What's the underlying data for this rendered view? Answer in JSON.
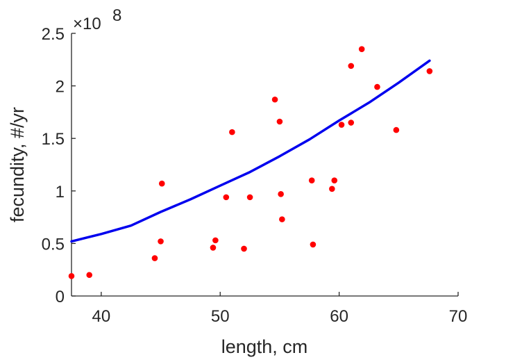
{
  "chart_data": {
    "type": "scatter",
    "title": "",
    "xlabel": "length, cm",
    "ylabel": "fecundity, #/yr",
    "xlim": [
      37.5,
      70
    ],
    "ylim": [
      0,
      2.5
    ],
    "y_multiplier_label": "×10",
    "y_multiplier_exponent": "8",
    "x_ticks": [
      40,
      50,
      60,
      70
    ],
    "x_tick_labels": [
      "40",
      "50",
      "60",
      "70"
    ],
    "y_ticks": [
      0,
      0.5,
      1,
      1.5,
      2,
      2.5
    ],
    "y_tick_labels": [
      "0",
      "0.5",
      "1",
      "1.5",
      "2",
      "2.5"
    ],
    "grid": false,
    "series": [
      {
        "kind": "points",
        "color": "#ff0000",
        "points": [
          [
            37.5,
            0.19
          ],
          [
            39.0,
            0.2
          ],
          [
            44.5,
            0.36
          ],
          [
            45.0,
            0.52
          ],
          [
            45.1,
            1.07
          ],
          [
            49.4,
            0.46
          ],
          [
            49.6,
            0.53
          ],
          [
            50.5,
            0.94
          ],
          [
            51.0,
            1.56
          ],
          [
            52.0,
            0.45
          ],
          [
            52.5,
            0.94
          ],
          [
            54.6,
            1.87
          ],
          [
            55.0,
            1.66
          ],
          [
            55.1,
            0.97
          ],
          [
            55.2,
            0.73
          ],
          [
            57.7,
            1.1
          ],
          [
            57.8,
            0.49
          ],
          [
            59.4,
            1.02
          ],
          [
            59.6,
            1.1
          ],
          [
            60.2,
            1.63
          ],
          [
            61.0,
            2.19
          ],
          [
            61.0,
            1.65
          ],
          [
            61.9,
            2.35
          ],
          [
            63.2,
            1.99
          ],
          [
            64.8,
            1.58
          ],
          [
            67.6,
            2.14
          ]
        ]
      },
      {
        "kind": "fit-curve",
        "color": "#0000ee",
        "points": [
          [
            37.5,
            0.52
          ],
          [
            40,
            0.59
          ],
          [
            42.5,
            0.67
          ],
          [
            45,
            0.8
          ],
          [
            47.5,
            0.92
          ],
          [
            50,
            1.05
          ],
          [
            52.5,
            1.18
          ],
          [
            55,
            1.33
          ],
          [
            57.5,
            1.49
          ],
          [
            60,
            1.67
          ],
          [
            62.5,
            1.84
          ],
          [
            65,
            2.03
          ],
          [
            67.6,
            2.24
          ]
        ]
      }
    ]
  }
}
